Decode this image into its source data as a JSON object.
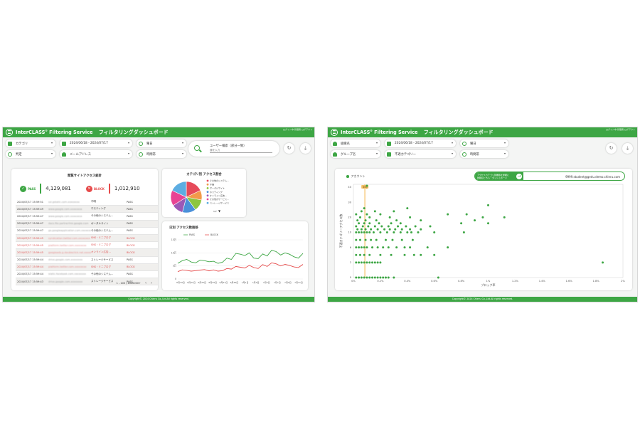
{
  "left": {
    "header": {
      "brand": "InterCLASS",
      "brand_mark": "®",
      "product": "Filtering Service",
      "dashboard": "フィルタリングダッシュボード",
      "user_info": "ログイン中:管理者 ログアウト"
    },
    "filters": {
      "category": "カテゴリ",
      "date_range": "2024/06/18 - 2024/07/17",
      "weekday": "曜日",
      "judgement": "判定",
      "mail_address": "メールアドレス",
      "time_zone": "時間帯"
    },
    "search": {
      "label": "ユーザー検索（部分一致）",
      "placeholder": "値を入力"
    },
    "access_log": {
      "title": "閲覧サイトアクセス統計",
      "pass_label": "PASS",
      "pass_count": "4,129,081",
      "block_label": "BLOCK",
      "block_count": "1,012,910",
      "rows": [
        {
          "time": "2024/07/17 15:59:51",
          "url": "ssl.gstatic.com.xxxxxxxx",
          "category": "不明",
          "result": "PASS"
        },
        {
          "time": "2024/07/17 15:59:49",
          "url": "www.google.com.xxxxxxxx",
          "category": "ホスティング",
          "result": "PASS"
        },
        {
          "time": "2024/07/17 15:59:47",
          "url": "www.google.com.xxxxxxxx",
          "category": "その他のシステム...",
          "result": "PASS"
        },
        {
          "time": "2024/07/17 15:59:47",
          "url": "docs.file.partnerlink.google.com",
          "category": "ポータルサイト",
          "result": "PASS"
        },
        {
          "time": "2024/07/17 15:59:47",
          "url": "go.googleapplication.com.xxxxxxxx",
          "category": "その他のシステム...",
          "result": "PASS"
        },
        {
          "time": "2024/07/17 15:59:45",
          "url": "syndication.twitter.com.xxxxxxxx",
          "category": "SNS・ミニブログ",
          "result": "BLOCK"
        },
        {
          "time": "2024/07/17 15:59:45",
          "url": "platform.twitter.com.xxxxxxxx",
          "category": "SNS・ミニブログ",
          "result": "BLOCK"
        },
        {
          "time": "2024/07/17 15:59:45",
          "url": "googleads.g.doubleclick.net.xxxxxxxx",
          "category": "オンライン広告...",
          "result": "BLOCK"
        },
        {
          "time": "2024/07/17 15:59:44",
          "url": "drive.google.com.xxxxxxxx",
          "category": "ストレージサービス",
          "result": "PASS"
        },
        {
          "time": "2024/07/17 15:59:44",
          "url": "platform.twitter.com.xxxxxxxx",
          "category": "SNS・ミニブログ",
          "result": "BLOCK"
        },
        {
          "time": "2024/07/17 15:59:44",
          "url": "static.facebook.com.xxxxxxxx",
          "category": "その他のシステム...",
          "result": "PASS"
        },
        {
          "time": "2024/07/17 15:59:43",
          "url": "drive.google.com.xxxxxxxx",
          "category": "ストレージサービス",
          "result": "PASS"
        }
      ],
      "pagination": "1 - 100 / 2000000+"
    },
    "category_chart": {
      "title": "カテゴリ別 アクセス割合",
      "legend": [
        "その他のシステム...",
        "不明",
        "ポータルサイト",
        "ホスティング",
        "オンライン広告...",
        "その他のサービス...",
        "ストレージサービス"
      ],
      "legend_colors": [
        "#e64a5a",
        "#f29a4a",
        "#8cc63f",
        "#4a90d9",
        "#9b59b6",
        "#e84393",
        "#5dade2"
      ],
      "legend_page": "1/7",
      "slices": [
        18,
        10,
        12,
        14,
        12,
        16,
        18
      ]
    },
    "daily_chart": {
      "title": "日別 アクセス数推移",
      "series": [
        "PASS",
        "BLOCK"
      ],
      "series_colors": [
        "#3da644",
        "#e64a4a"
      ],
      "y_ticks": [
        "15万",
        "10万",
        "5万",
        "0"
      ],
      "x_ticks": [
        "6月19日",
        "6月21日",
        "6月23日",
        "6月25日",
        "6月27日",
        "6月29日",
        "7月1日",
        "7月3日",
        "7月5日",
        "7月7日",
        "7月9日",
        "7月11日"
      ],
      "chart_data": {
        "type": "line",
        "x": [
          "6月19日",
          "6月20日",
          "6月21日",
          "6月22日",
          "6月23日",
          "6月24日",
          "6月25日",
          "6月26日",
          "6月27日",
          "6月28日",
          "6月29日",
          "6月30日",
          "7月1日",
          "7月2日",
          "7月3日",
          "7月4日",
          "7月5日",
          "7月6日",
          "7月7日",
          "7月8日",
          "7月9日",
          "7月10日",
          "7月11日",
          "7月12日",
          "7月13日",
          "7月14日",
          "7月15日",
          "7月16日",
          "7月17日"
        ],
        "series": [
          {
            "name": "PASS",
            "values": [
              60000,
              70000,
              75000,
              65000,
              62000,
              72000,
              70000,
              66000,
              68000,
              60000,
              64000,
              80000,
              75000,
              98000,
              95000,
              90000,
              100000,
              80000,
              78000,
              96000,
              88000,
              110000,
              105000,
              92000,
              100000,
              95000,
              85000,
              80000,
              98000
            ]
          },
          {
            "name": "BLOCK",
            "values": [
              28000,
              35000,
              33000,
              30000,
              32000,
              34000,
              36000,
              31000,
              35000,
              30000,
              32000,
              40000,
              38000,
              48000,
              45000,
              42000,
              52000,
              44000,
              40000,
              55000,
              48000,
              62000,
              58000,
              50000,
              56000,
              52000,
              46000,
              44000,
              56000
            ]
          }
        ],
        "ylim": [
          0,
          150000
        ]
      }
    },
    "footer": "Copyright© 2024 Chieru Co.,Ltd.All rights reserved."
  },
  "right": {
    "header": {
      "brand": "InterCLASS",
      "brand_mark": "®",
      "product": "Filtering Service",
      "dashboard": "フィルタリングダッシュボード",
      "user_info": "ログイン中:管理者 ログアウト"
    },
    "filters": {
      "org_name": "組織名",
      "date_range": "2024/06/18 - 2024/07/17",
      "weekday": "曜日",
      "group_name": "グループ名",
      "inappropriate_category": "不適カテゴリー",
      "time_zone": "時間帯"
    },
    "scatter": {
      "legend": "アカウント",
      "detail_button": "アクセスカテゴリ別推移を詳細に",
      "detail_subtitle": "詳細はこちら・ダッシュボード",
      "selected_account": "9999.student@gedu.demo.chieru.com",
      "xlabel": "ブロック率",
      "ylabel": "不適カテゴリーアクセス数",
      "avg_label": "平均",
      "x_ticks": [
        "0%",
        "0.2%",
        "0.4%",
        "0.6%",
        "0.8%",
        "1%",
        "1.2%",
        "1.4%",
        "1.6%",
        "1.8%",
        "2%"
      ],
      "y_ticks": [
        "40",
        "30",
        "20",
        "10",
        "6",
        "2",
        "0"
      ],
      "chart_data": {
        "type": "scatter",
        "xlabel": "ブロック率",
        "ylabel": "不適カテゴリーアクセス数",
        "xlim": [
          0,
          2
        ],
        "ylim": [
          0,
          40
        ],
        "points": [
          [
            0.02,
            0
          ],
          [
            0.04,
            0
          ],
          [
            0.06,
            0
          ],
          [
            0.08,
            0
          ],
          [
            0.1,
            0
          ],
          [
            0.12,
            0
          ],
          [
            0.14,
            0
          ],
          [
            0.16,
            0
          ],
          [
            0.18,
            0
          ],
          [
            0.2,
            0
          ],
          [
            0.22,
            0
          ],
          [
            0.24,
            0
          ],
          [
            0.26,
            0
          ],
          [
            0.3,
            0
          ],
          [
            0.63,
            0
          ],
          [
            0.02,
            2
          ],
          [
            0.04,
            2
          ],
          [
            0.06,
            2
          ],
          [
            0.08,
            2
          ],
          [
            0.1,
            2
          ],
          [
            0.12,
            2
          ],
          [
            0.14,
            2
          ],
          [
            0.16,
            2
          ],
          [
            0.18,
            2
          ],
          [
            0.2,
            2
          ],
          [
            1.85,
            2
          ],
          [
            0.02,
            4
          ],
          [
            0.05,
            4
          ],
          [
            0.08,
            4
          ],
          [
            0.12,
            4
          ],
          [
            0.2,
            4
          ],
          [
            0.28,
            4
          ],
          [
            0.38,
            4
          ],
          [
            0.45,
            4
          ],
          [
            0.5,
            4
          ],
          [
            0.6,
            4
          ],
          [
            0.02,
            6
          ],
          [
            0.04,
            6
          ],
          [
            0.06,
            6
          ],
          [
            0.08,
            6
          ],
          [
            0.1,
            6
          ],
          [
            0.14,
            6
          ],
          [
            0.18,
            6
          ],
          [
            0.22,
            6
          ],
          [
            0.26,
            6
          ],
          [
            0.32,
            6
          ],
          [
            0.38,
            6
          ],
          [
            0.42,
            6
          ],
          [
            0.55,
            6
          ],
          [
            0.7,
            6
          ],
          [
            0.02,
            8
          ],
          [
            0.05,
            8
          ],
          [
            0.09,
            8
          ],
          [
            0.13,
            8
          ],
          [
            0.17,
            8
          ],
          [
            0.24,
            8
          ],
          [
            0.29,
            8
          ],
          [
            0.36,
            8
          ],
          [
            0.44,
            8
          ],
          [
            0.02,
            10
          ],
          [
            0.04,
            10
          ],
          [
            0.06,
            10
          ],
          [
            0.08,
            10
          ],
          [
            0.1,
            10
          ],
          [
            0.12,
            10
          ],
          [
            0.15,
            10
          ],
          [
            0.2,
            10
          ],
          [
            0.25,
            10
          ],
          [
            0.3,
            10
          ],
          [
            0.35,
            10
          ],
          [
            0.4,
            10
          ],
          [
            0.43,
            10
          ],
          [
            0.48,
            10
          ],
          [
            0.6,
            10
          ],
          [
            0.82,
            10
          ],
          [
            0.03,
            12
          ],
          [
            0.06,
            12
          ],
          [
            0.09,
            12
          ],
          [
            0.13,
            12
          ],
          [
            0.18,
            12
          ],
          [
            0.23,
            12
          ],
          [
            0.27,
            12
          ],
          [
            0.31,
            12
          ],
          [
            0.36,
            12
          ],
          [
            0.42,
            12
          ],
          [
            0.5,
            12
          ],
          [
            0.02,
            14
          ],
          [
            0.07,
            14
          ],
          [
            0.11,
            14
          ],
          [
            0.16,
            14
          ],
          [
            0.21,
            14
          ],
          [
            0.26,
            14
          ],
          [
            0.33,
            14
          ],
          [
            0.39,
            14
          ],
          [
            0.46,
            14
          ],
          [
            0.57,
            14
          ],
          [
            0.04,
            16
          ],
          [
            0.08,
            16
          ],
          [
            0.12,
            16
          ],
          [
            0.19,
            16
          ],
          [
            0.28,
            16
          ],
          [
            0.35,
            16
          ],
          [
            0.8,
            16
          ],
          [
            1.0,
            16
          ],
          [
            0.03,
            18
          ],
          [
            0.09,
            18
          ],
          [
            0.17,
            18
          ],
          [
            0.32,
            18
          ],
          [
            0.5,
            18
          ],
          [
            0.9,
            18
          ],
          [
            0.05,
            20
          ],
          [
            0.12,
            20
          ],
          [
            0.27,
            20
          ],
          [
            0.42,
            20
          ],
          [
            0.96,
            20
          ],
          [
            1.12,
            20
          ],
          [
            0.02,
            22
          ],
          [
            0.1,
            22
          ],
          [
            0.2,
            22
          ],
          [
            0.7,
            22
          ],
          [
            0.84,
            22
          ],
          [
            0.06,
            24
          ],
          [
            0.16,
            24
          ],
          [
            0.3,
            24
          ],
          [
            0.08,
            26
          ],
          [
            0.4,
            26
          ],
          [
            1.0,
            28
          ],
          [
            0.1,
            42
          ]
        ],
        "average_x": 0.085
      }
    },
    "footer": "Copyright© 2024 Chieru Co.,Ltd.All rights reserved."
  }
}
